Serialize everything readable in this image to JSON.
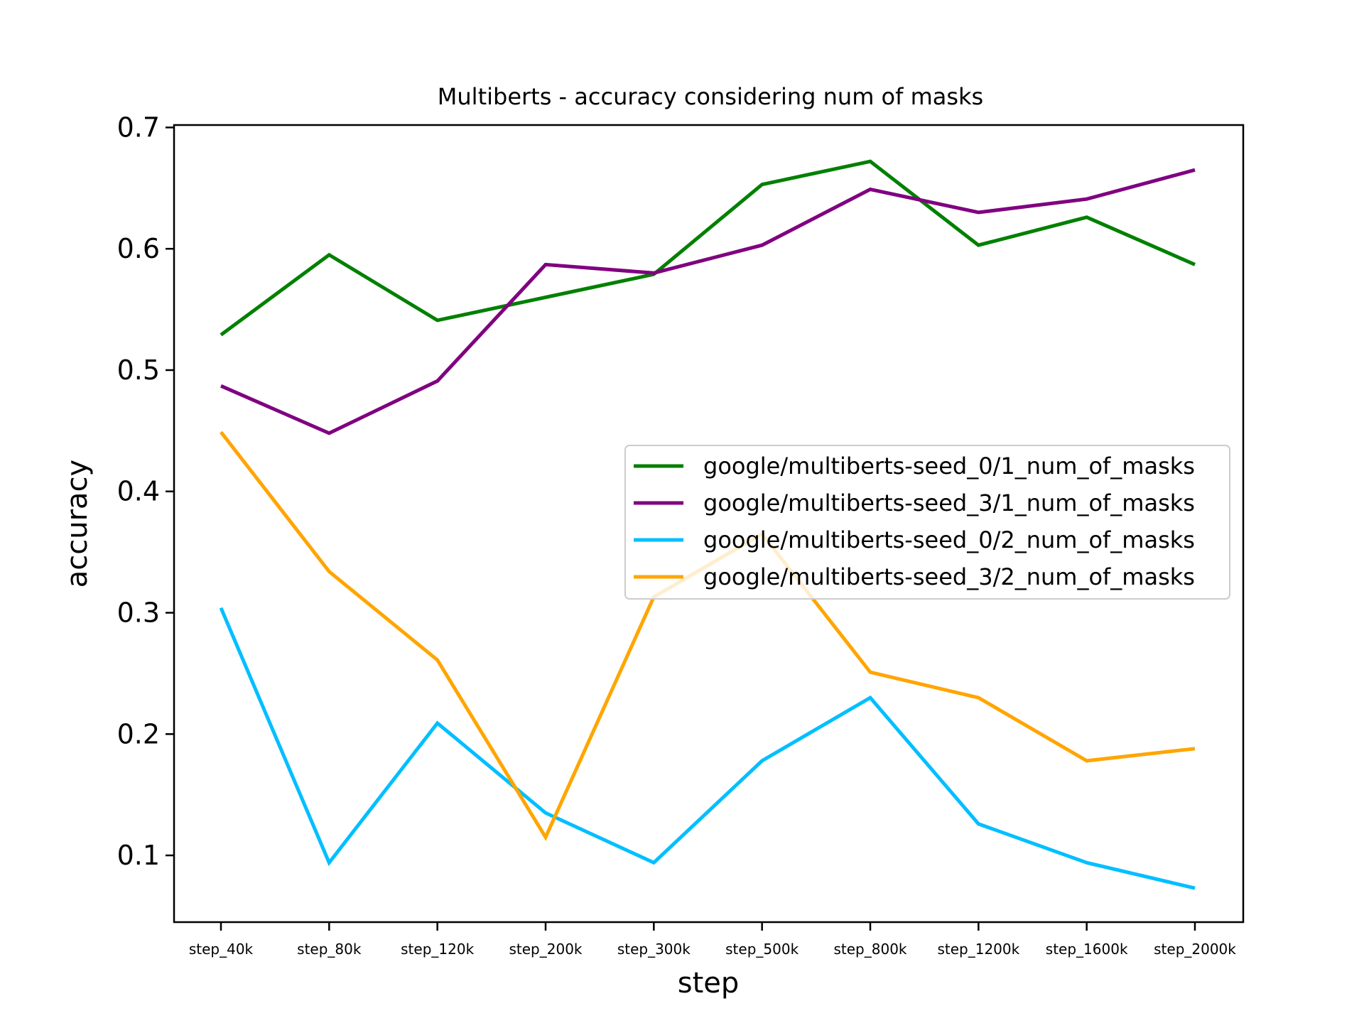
{
  "chart_data": {
    "type": "line",
    "title": "Multiberts - accuracy considering num of masks",
    "xlabel": "step",
    "ylabel": "accuracy",
    "categories": [
      "step_40k",
      "step_80k",
      "step_120k",
      "step_200k",
      "step_300k",
      "step_500k",
      "step_800k",
      "step_1200k",
      "step_1600k",
      "step_2000k"
    ],
    "ylim": [
      0.045,
      0.702
    ],
    "yticks": [
      0.1,
      0.2,
      0.3,
      0.4,
      0.5,
      0.6,
      0.7
    ],
    "ytick_labels": [
      "0.1",
      "0.2",
      "0.3",
      "0.4",
      "0.5",
      "0.6",
      "0.7"
    ],
    "grid": false,
    "legend_position": "center-right",
    "series": [
      {
        "name": "google/multiberts-seed_0/1_num_of_masks",
        "color": "#008000",
        "values": [
          0.529,
          0.595,
          0.541,
          0.56,
          0.579,
          0.653,
          0.672,
          0.603,
          0.626,
          0.587
        ]
      },
      {
        "name": "google/multiberts-seed_3/1_num_of_masks",
        "color": "#800080",
        "values": [
          0.487,
          0.448,
          0.491,
          0.587,
          0.58,
          0.603,
          0.649,
          0.63,
          0.641,
          0.665
        ]
      },
      {
        "name": "google/multiberts-seed_0/2_num_of_masks",
        "color": "#00bfff",
        "values": [
          0.304,
          0.094,
          0.209,
          0.135,
          0.094,
          0.178,
          0.23,
          0.126,
          0.094,
          0.073
        ]
      },
      {
        "name": "google/multiberts-seed_3/2_num_of_masks",
        "color": "#ffa500",
        "values": [
          0.449,
          0.334,
          0.261,
          0.115,
          0.313,
          0.365,
          0.251,
          0.23,
          0.178,
          0.188
        ]
      }
    ]
  }
}
